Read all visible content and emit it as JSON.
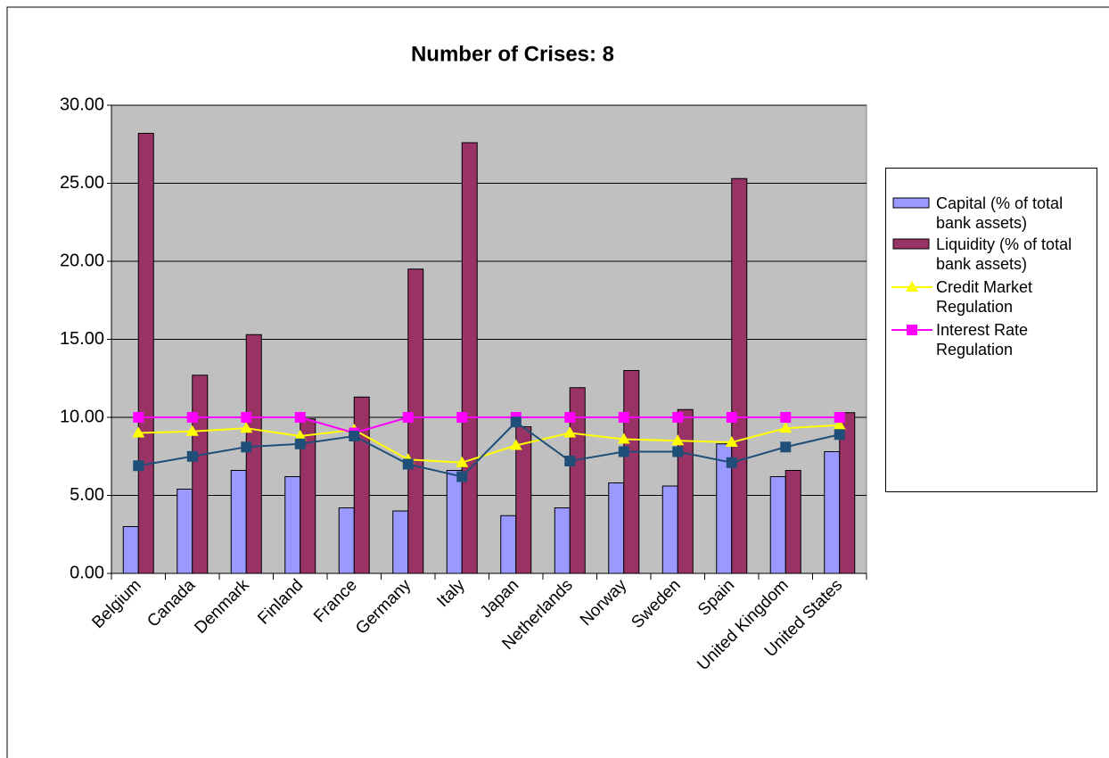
{
  "chart_data": {
    "type": "bar",
    "title": "Number of Crises: 8",
    "categories": [
      "Belgium",
      "Canada",
      "Denmark",
      "Finland",
      "France",
      "Germany",
      "Italy",
      "Japan",
      "Netherlands",
      "Norway",
      "Sweden",
      "Spain",
      "United Kingdom",
      "United States"
    ],
    "ylim": [
      0,
      30
    ],
    "yticks": [
      {
        "value": 0,
        "label": "0.00"
      },
      {
        "value": 5,
        "label": "5.00"
      },
      {
        "value": 10,
        "label": "10.00"
      },
      {
        "value": 15,
        "label": "15.00"
      },
      {
        "value": 20,
        "label": "20.00"
      },
      {
        "value": 25,
        "label": "25.00"
      },
      {
        "value": 30,
        "label": "30.00"
      }
    ],
    "grid": true,
    "legend": "right",
    "background": "#c0c0c0",
    "series": [
      {
        "name": "Capital (% of total bank assets)",
        "type": "bar",
        "color": "#9999ff",
        "values": [
          3.0,
          5.4,
          6.6,
          6.2,
          4.2,
          4.0,
          6.6,
          3.7,
          4.2,
          5.8,
          5.6,
          8.3,
          6.2,
          7.8
        ]
      },
      {
        "name": "Liquidity (% of total bank assets)",
        "type": "bar",
        "color": "#993366",
        "values": [
          28.2,
          12.7,
          15.3,
          9.9,
          11.3,
          19.5,
          27.6,
          9.4,
          11.9,
          13.0,
          10.5,
          25.3,
          6.6,
          10.3
        ]
      },
      {
        "name": "Credit Market Regulation",
        "type": "line",
        "marker": "triangle",
        "color": "#ffff00",
        "values": [
          9.0,
          9.1,
          9.3,
          8.8,
          9.2,
          7.3,
          7.1,
          8.2,
          9.0,
          8.6,
          8.5,
          8.4,
          9.3,
          9.5
        ]
      },
      {
        "name": "Interest Rate Regulation",
        "type": "line",
        "marker": "square",
        "color": "#ff00ff",
        "values": [
          10,
          10,
          10,
          10,
          9.0,
          10,
          10,
          10,
          10,
          10,
          10,
          10,
          10,
          10
        ]
      },
      {
        "type": "line",
        "marker": "square",
        "color": "#1f4e79",
        "values": [
          6.9,
          7.5,
          8.1,
          8.3,
          8.8,
          7.0,
          6.2,
          9.7,
          7.2,
          7.8,
          7.8,
          7.1,
          8.1,
          8.9
        ]
      }
    ]
  }
}
